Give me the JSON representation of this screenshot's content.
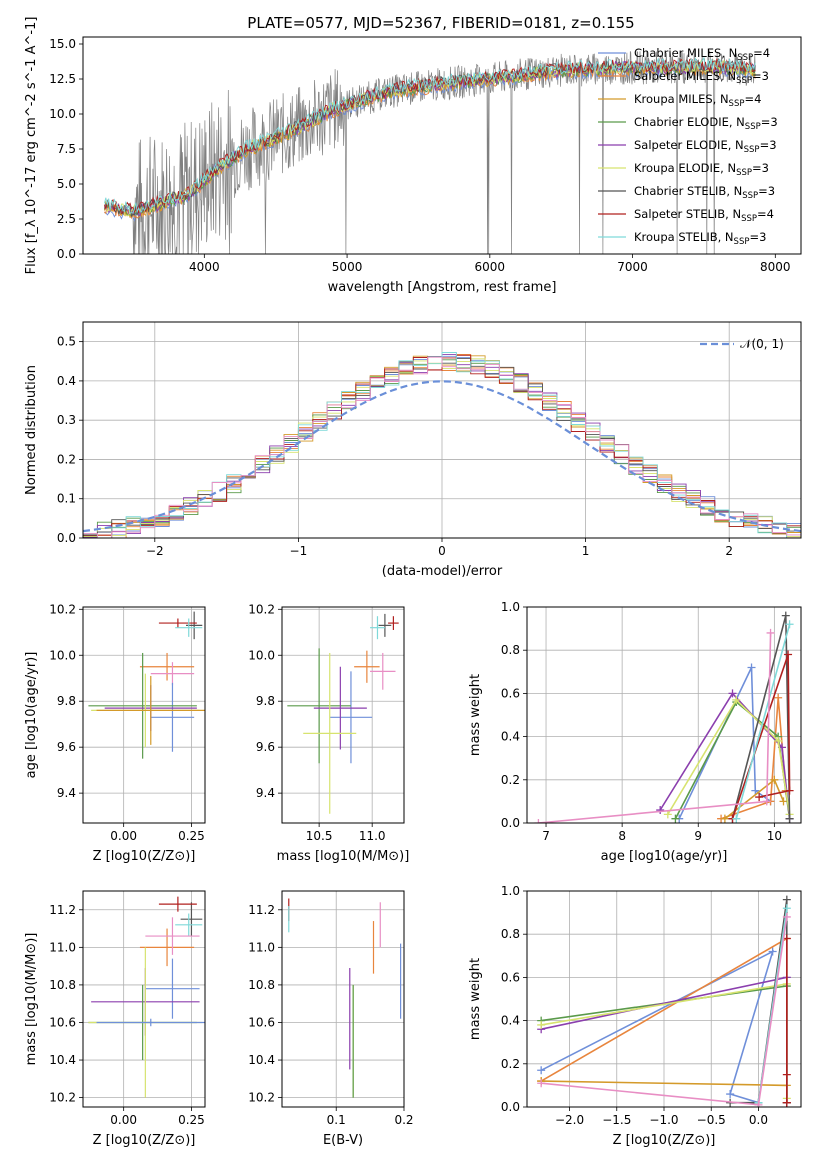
{
  "figure": {
    "title": "PLATE=0577, MJD=52367, FIBERID=0181, z=0.155"
  },
  "chart_data": [
    {
      "id": "spectrum",
      "type": "line",
      "xlabel": "wavelength [Angstrom, rest frame]",
      "ylabel": "Flux [f_λ 10^-17 erg cm^-2 s^-1 A^-1]",
      "xlim": [
        3150,
        8180
      ],
      "ylim": [
        0,
        15.5
      ],
      "xticks": [
        4000,
        5000,
        6000,
        7000,
        8000
      ],
      "yticks": [
        0.0,
        2.5,
        5.0,
        7.5,
        10.0,
        12.5,
        15.0
      ],
      "ytick_labels": [
        "0.0",
        "2.5",
        "5.0",
        "7.5",
        "10.0",
        "12.5",
        "15.0"
      ],
      "data_color": "#808080",
      "model_envelope": {
        "x": [
          3300,
          3500,
          3700,
          3900,
          4100,
          4300,
          4500,
          4700,
          4900,
          5100,
          5300,
          5500,
          5700,
          5900,
          6100,
          6300,
          6500,
          6700,
          6900,
          7100,
          7300,
          7500,
          7700,
          7860
        ],
        "y": [
          3.4,
          3.0,
          3.6,
          4.3,
          6.2,
          7.5,
          8.3,
          9.2,
          10.3,
          11.0,
          11.6,
          11.9,
          12.2,
          12.4,
          12.6,
          12.9,
          13.1,
          13.2,
          13.3,
          13.3,
          13.3,
          13.4,
          13.3,
          13.1
        ]
      },
      "legend": [
        {
          "label": "Chabrier MILES, N",
          "sub": "SSP",
          "tail": "=4",
          "color": "#6f8fd9"
        },
        {
          "label": "Salpeter MILES, N",
          "sub": "SSP",
          "tail": "=3",
          "color": "#e8853d"
        },
        {
          "label": "Kroupa MILES, N",
          "sub": "SSP",
          "tail": "=4",
          "color": "#d49a2a"
        },
        {
          "label": "Chabrier ELODIE, N",
          "sub": "SSP",
          "tail": "=3",
          "color": "#5a9a4a"
        },
        {
          "label": "Salpeter ELODIE, N",
          "sub": "SSP",
          "tail": "=3",
          "color": "#8b3fae"
        },
        {
          "label": "Kroupa ELODIE, N",
          "sub": "SSP",
          "tail": "=3",
          "color": "#d7e36f"
        },
        {
          "label": "Chabrier STELIB, N",
          "sub": "SSP",
          "tail": "=3",
          "color": "#555555"
        },
        {
          "label": "Salpeter STELIB, N",
          "sub": "SSP",
          "tail": "=4",
          "color": "#b0201f"
        },
        {
          "label": "Kroupa STELIB, N",
          "sub": "SSP",
          "tail": "=3",
          "color": "#7fd9d9"
        }
      ]
    },
    {
      "id": "residuals",
      "type": "histogram",
      "xlabel": "(data-model)/error",
      "ylabel": "Normed distribution",
      "xlim": [
        -2.5,
        2.5
      ],
      "ylim": [
        0,
        0.55
      ],
      "xticks": [
        -2,
        -1,
        0,
        1,
        2
      ],
      "xtick_labels": [
        "−2",
        "−1",
        "0",
        "1",
        "2"
      ],
      "yticks": [
        0.0,
        0.1,
        0.2,
        0.3,
        0.4,
        0.5
      ],
      "ytick_labels": [
        "0.0",
        "0.1",
        "0.2",
        "0.3",
        "0.4",
        "0.5"
      ],
      "gauss_label": "𝒩(0, 1)",
      "gauss_color": "#6a8fd8",
      "bin_width": 0.1
    },
    {
      "id": "age-vs-Z",
      "type": "errorbar",
      "xlabel": "Z [log10(Z/Z⊙)]",
      "ylabel": "age [log10(age/yr)]",
      "xlim": [
        -0.15,
        0.3
      ],
      "ylim": [
        9.27,
        10.21
      ],
      "xticks": [
        0.0,
        0.25
      ],
      "xtick_labels": [
        "0.00",
        "0.25"
      ],
      "yticks": [
        9.4,
        9.6,
        9.8,
        10.0,
        10.2
      ],
      "ytick_labels": [
        "9.4",
        "9.6",
        "9.8",
        "10.0",
        "10.2"
      ]
    },
    {
      "id": "age-vs-mass",
      "type": "errorbar",
      "xlabel": "mass [log10(M/M⊙)]",
      "ylabel": "",
      "xlim": [
        10.15,
        11.3
      ],
      "ylim": [
        9.27,
        10.21
      ],
      "xticks": [
        10.5,
        11.0
      ],
      "xtick_labels": [
        "10.5",
        "11.0"
      ],
      "yticks": [
        9.4,
        9.6,
        9.8,
        10.0,
        10.2
      ],
      "ytick_labels": [
        "9.4",
        "9.6",
        "9.8",
        "10.0",
        "10.2"
      ]
    },
    {
      "id": "massweight-vs-age",
      "type": "line",
      "xlabel": "age  [log10(age/yr)]",
      "ylabel": "mass weight",
      "xlim": [
        6.75,
        10.35
      ],
      "ylim": [
        0,
        1.0
      ],
      "xticks": [
        7,
        8,
        9,
        10
      ],
      "xtick_labels": [
        "7",
        "8",
        "9",
        "10"
      ],
      "yticks": [
        0.0,
        0.2,
        0.4,
        0.6,
        0.8,
        1.0
      ],
      "ytick_labels": [
        "0.0",
        "0.2",
        "0.4",
        "0.6",
        "0.8",
        "1.0"
      ],
      "series": [
        {
          "color": "#6f8fd9",
          "points": [
            [
              8.75,
              0.02
            ],
            [
              9.7,
              0.72
            ],
            [
              9.75,
              0.15
            ],
            [
              9.95,
              0.1
            ]
          ]
        },
        {
          "color": "#e8853d",
          "points": [
            [
              9.3,
              0.02
            ],
            [
              9.95,
              0.1
            ],
            [
              10.05,
              0.58
            ],
            [
              10.15,
              0.15
            ]
          ]
        },
        {
          "color": "#d49a2a",
          "points": [
            [
              9.35,
              0.02
            ],
            [
              10.0,
              0.2
            ],
            [
              10.12,
              0.1
            ]
          ]
        },
        {
          "color": "#5a9a4a",
          "points": [
            [
              8.7,
              0.02
            ],
            [
              9.5,
              0.56
            ],
            [
              10.05,
              0.4
            ],
            [
              10.2,
              0.02
            ]
          ]
        },
        {
          "color": "#8b3fae",
          "points": [
            [
              8.5,
              0.06
            ],
            [
              9.45,
              0.6
            ],
            [
              10.1,
              0.35
            ],
            [
              10.2,
              0.02
            ]
          ]
        },
        {
          "color": "#d7e36f",
          "points": [
            [
              8.6,
              0.04
            ],
            [
              9.5,
              0.57
            ],
            [
              10.05,
              0.38
            ],
            [
              10.2,
              0.04
            ]
          ]
        },
        {
          "color": "#555555",
          "points": [
            [
              9.45,
              0.02
            ],
            [
              10.15,
              0.96
            ],
            [
              10.2,
              0.02
            ]
          ]
        },
        {
          "color": "#b0201f",
          "points": [
            [
              9.45,
              0.02
            ],
            [
              10.18,
              0.78
            ],
            [
              10.2,
              0.15
            ],
            [
              9.8,
              0.12
            ]
          ]
        },
        {
          "color": "#7fd9d9",
          "points": [
            [
              9.5,
              0.02
            ],
            [
              10.2,
              0.92
            ]
          ]
        },
        {
          "color": "#e88ec4",
          "points": [
            [
              6.9,
              0.0
            ],
            [
              9.9,
              0.1
            ],
            [
              9.95,
              0.88
            ]
          ]
        }
      ]
    },
    {
      "id": "mass-vs-Z",
      "type": "errorbar",
      "xlabel": "Z [log10(Z/Z⊙)]",
      "ylabel": "mass [log10(M/M⊙)]",
      "xlim": [
        -0.15,
        0.3
      ],
      "ylim": [
        10.15,
        11.3
      ],
      "xticks": [
        0.0,
        0.25
      ],
      "xtick_labels": [
        "0.00",
        "0.25"
      ],
      "yticks": [
        10.2,
        10.4,
        10.6,
        10.8,
        11.0,
        11.2
      ],
      "ytick_labels": [
        "10.2",
        "10.4",
        "10.6",
        "10.8",
        "11.0",
        "11.2"
      ]
    },
    {
      "id": "mass-vs-ebv",
      "type": "errorbar",
      "xlabel": "E(B-V)",
      "ylabel": "",
      "xlim": [
        0.02,
        0.2
      ],
      "ylim": [
        10.15,
        11.3
      ],
      "xticks": [
        0.1,
        0.2
      ],
      "xtick_labels": [
        "0.1",
        "0.2"
      ],
      "yticks": [
        10.2,
        10.4,
        10.6,
        10.8,
        11.0,
        11.2
      ],
      "ytick_labels": [
        "10.2",
        "10.4",
        "10.6",
        "10.8",
        "11.0",
        "11.2"
      ]
    },
    {
      "id": "massweight-vs-Z",
      "type": "line",
      "xlabel": "Z [log10(Z/Z⊙)]",
      "ylabel": "mass weight",
      "xlim": [
        -2.45,
        0.45
      ],
      "ylim": [
        0,
        1.0
      ],
      "xticks": [
        -2.0,
        -1.5,
        -1.0,
        -0.5,
        0.0
      ],
      "xtick_labels": [
        "−2.0",
        "−1.5",
        "−1.0",
        "−0.5",
        "0.0"
      ],
      "yticks": [
        0.0,
        0.2,
        0.4,
        0.6,
        0.8,
        1.0
      ],
      "ytick_labels": [
        "0.0",
        "0.2",
        "0.4",
        "0.6",
        "0.8",
        "1.0"
      ],
      "series": [
        {
          "color": "#6f8fd9",
          "points": [
            [
              -2.3,
              0.17
            ],
            [
              0.15,
              0.72
            ],
            [
              -0.3,
              0.06
            ],
            [
              0.0,
              0.02
            ]
          ]
        },
        {
          "color": "#e8853d",
          "points": [
            [
              -2.3,
              0.12
            ],
            [
              0.3,
              0.78
            ],
            [
              0.3,
              0.02
            ]
          ]
        },
        {
          "color": "#d49a2a",
          "points": [
            [
              -2.3,
              0.12
            ],
            [
              0.3,
              0.1
            ],
            [
              0.3,
              0.02
            ]
          ]
        },
        {
          "color": "#5a9a4a",
          "points": [
            [
              -2.3,
              0.4
            ],
            [
              0.3,
              0.56
            ],
            [
              0.3,
              0.02
            ]
          ]
        },
        {
          "color": "#8b3fae",
          "points": [
            [
              -2.3,
              0.36
            ],
            [
              0.3,
              0.6
            ],
            [
              0.3,
              0.02
            ]
          ]
        },
        {
          "color": "#d7e36f",
          "points": [
            [
              -2.3,
              0.38
            ],
            [
              0.3,
              0.57
            ],
            [
              0.3,
              0.04
            ]
          ]
        },
        {
          "color": "#555555",
          "points": [
            [
              -0.3,
              0.02
            ],
            [
              0.0,
              0.02
            ],
            [
              0.3,
              0.96
            ],
            [
              0.3,
              0.02
            ]
          ]
        },
        {
          "color": "#b0201f",
          "points": [
            [
              0.3,
              0.02
            ],
            [
              0.3,
              0.78
            ],
            [
              0.3,
              0.15
            ]
          ]
        },
        {
          "color": "#7fd9d9",
          "points": [
            [
              0.0,
              0.02
            ],
            [
              0.3,
              0.92
            ]
          ]
        },
        {
          "color": "#e88ec4",
          "points": [
            [
              -2.3,
              0.11
            ],
            [
              0.0,
              0.01
            ],
            [
              0.3,
              0.88
            ]
          ]
        }
      ]
    }
  ]
}
